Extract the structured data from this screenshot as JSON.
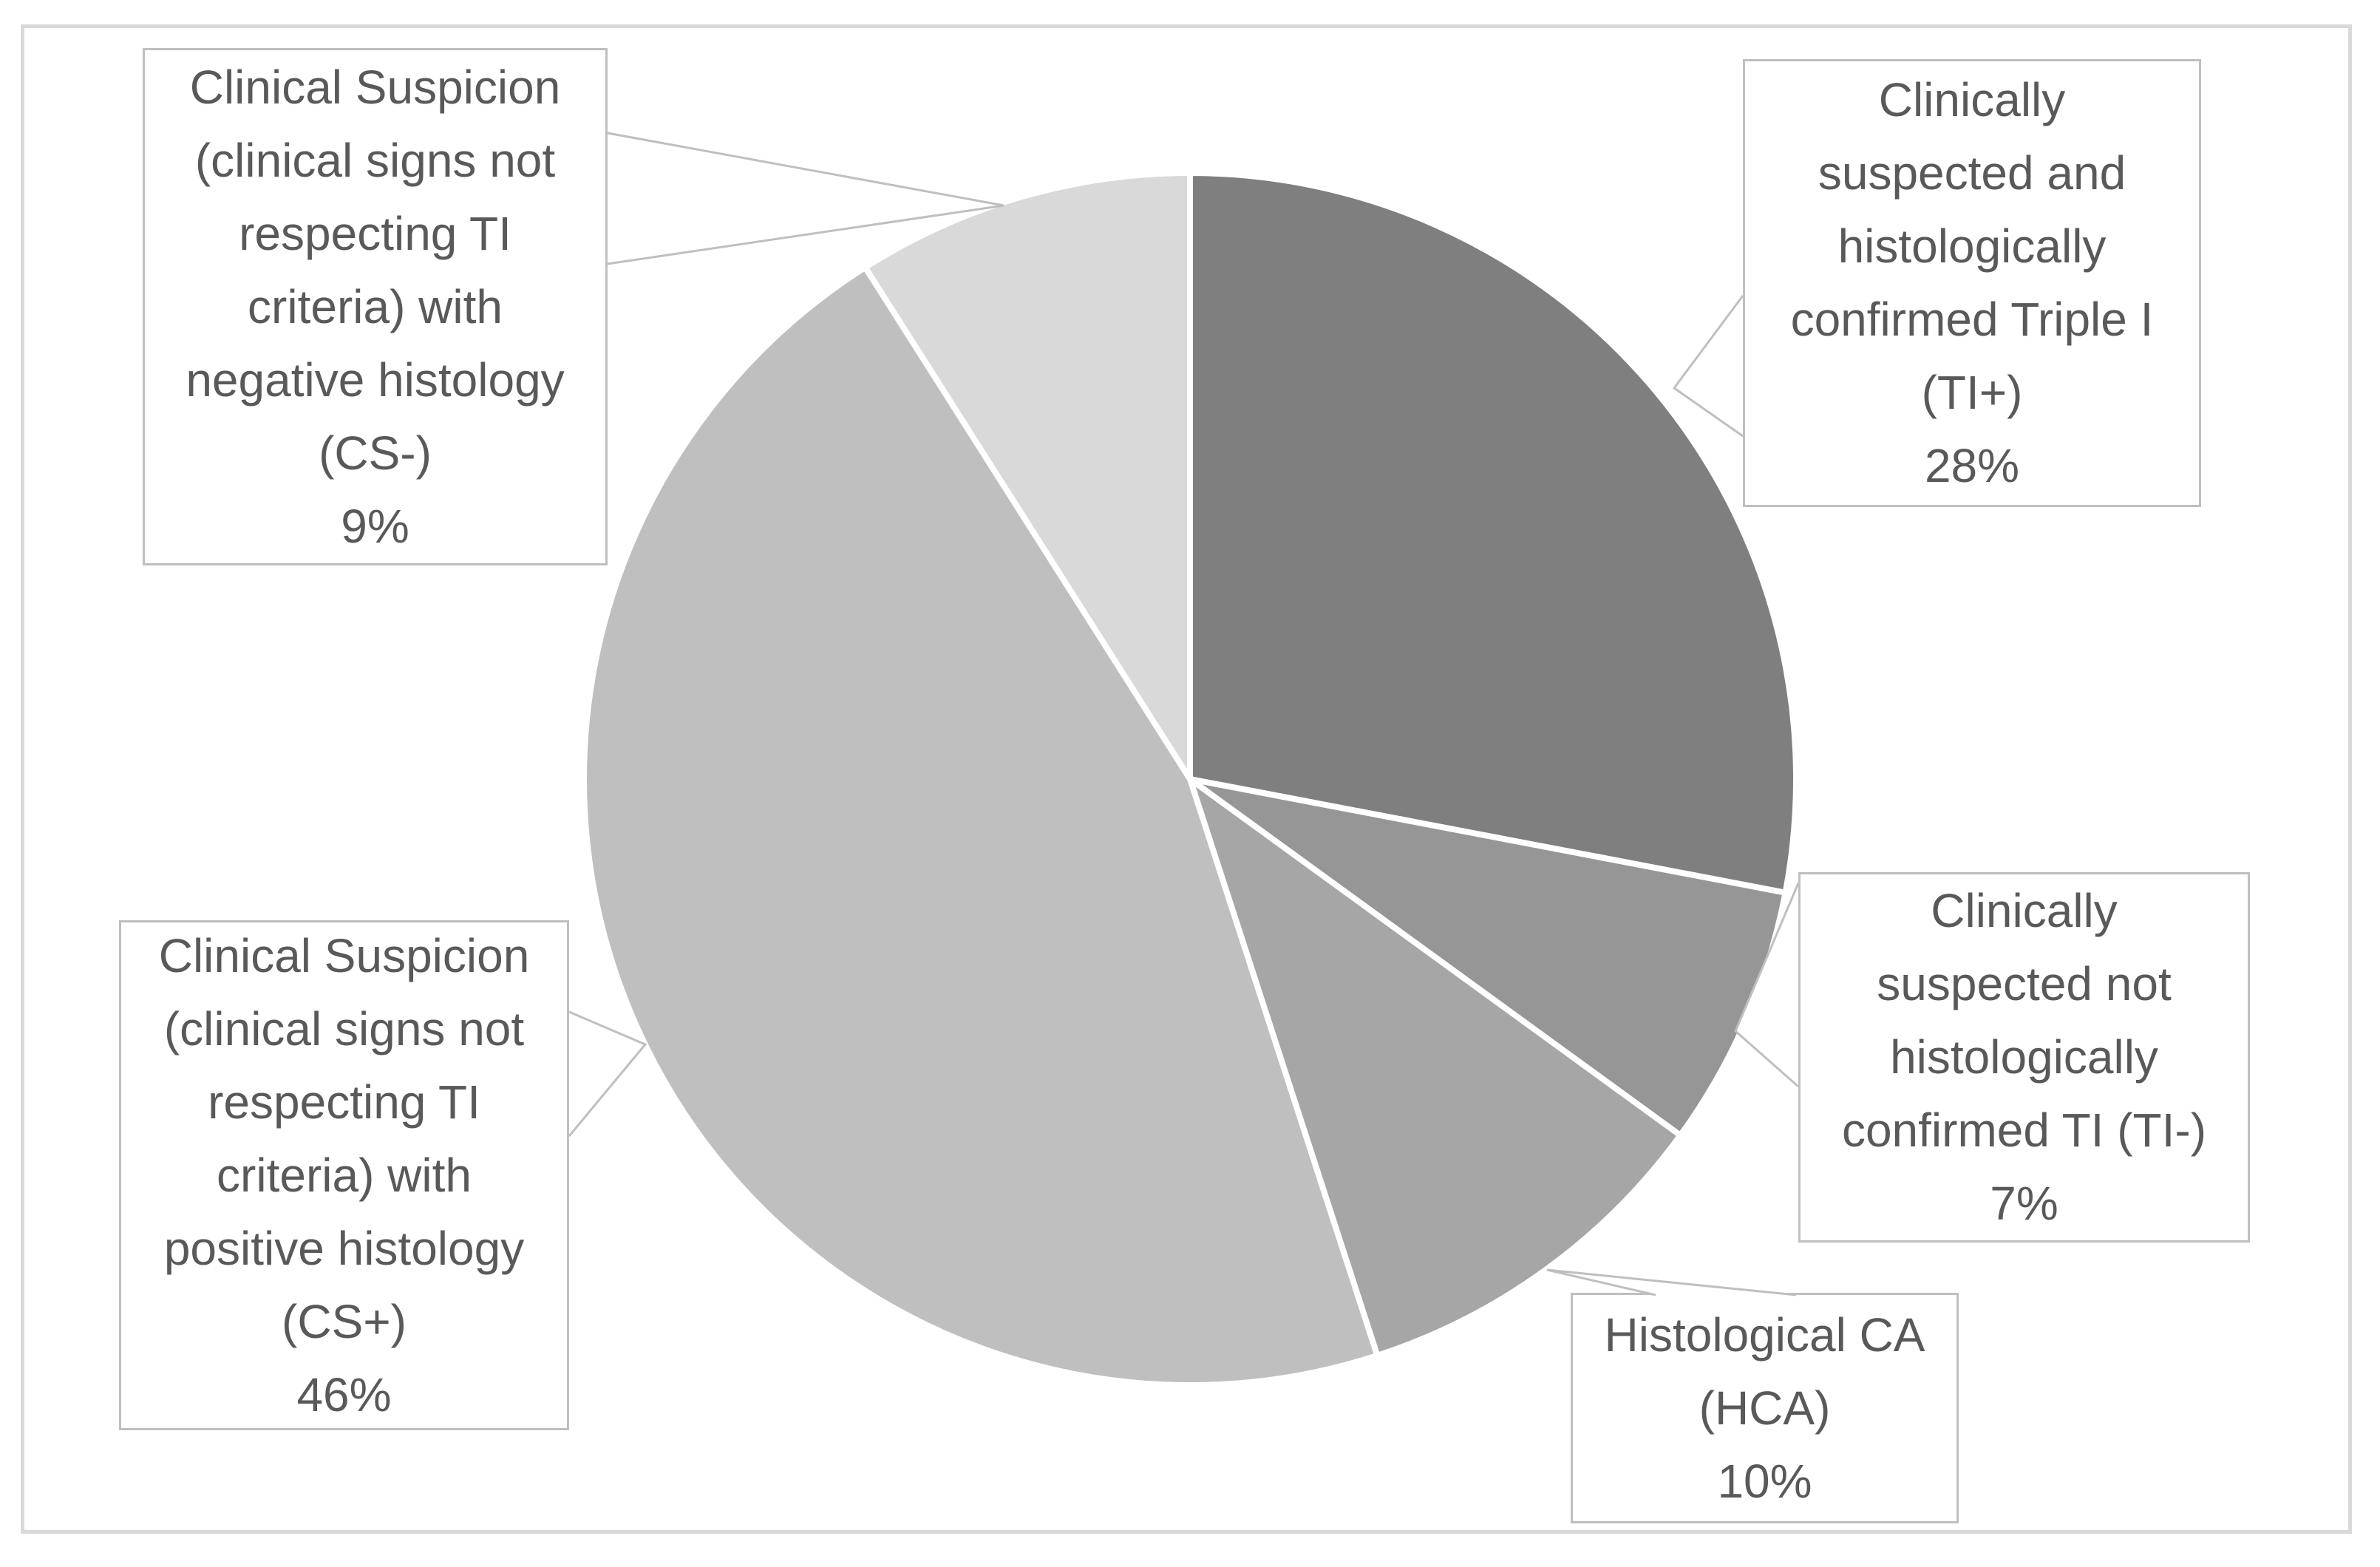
{
  "figure": {
    "kind": "pie-chart-figure",
    "background_color": "#ffffff",
    "frame_border_color": "#d9d9d9",
    "callout_border_color": "#bfbfbf",
    "text_color": "#595959",
    "slice_divider_color": "#ffffff"
  },
  "chart_data": {
    "type": "pie",
    "title": "",
    "legend": "none",
    "start_angle_deg": 0,
    "direction": "clockwise",
    "labels_style": "callout-boxes",
    "slices": [
      {
        "id": "ti_plus",
        "label": "Clinically suspected and histologically confirmed Triple I (TI+)",
        "name_lines": [
          "Clinically",
          "suspected and",
          "histologically",
          "confirmed Triple I",
          "(TI+)"
        ],
        "percent_label": "28%",
        "value": 28,
        "color": "#7f7f7f"
      },
      {
        "id": "ti_minus",
        "label": "Clinically suspected not histologically confirmed TI (TI-)",
        "name_lines": [
          "Clinically",
          "suspected not",
          "histologically",
          "confirmed TI (TI-)"
        ],
        "percent_label": "7%",
        "value": 7,
        "color": "#969696"
      },
      {
        "id": "hca",
        "label": "Histological CA (HCA)",
        "name_lines": [
          "Histological CA",
          "(HCA)"
        ],
        "percent_label": "10%",
        "value": 10,
        "color": "#a6a6a6"
      },
      {
        "id": "cs_plus",
        "label": "Clinical Suspicion (clinical signs not respecting TI criteria) with positive histology (CS+)",
        "name_lines": [
          "Clinical Suspicion",
          "(clinical signs not",
          "respecting TI",
          "criteria) with",
          "positive histology",
          "(CS+)"
        ],
        "percent_label": "46%",
        "value": 46,
        "color": "#bfbfbf"
      },
      {
        "id": "cs_minus",
        "label": "Clinical Suspicion (clinical signs not respecting TI criteria) with negative histology (CS-)",
        "name_lines": [
          "Clinical Suspicion",
          "(clinical signs not",
          "respecting TI",
          "criteria) with",
          "negative histology",
          "(CS-)"
        ],
        "percent_label": "9%",
        "value": 9,
        "color": "#d9d9d9"
      }
    ]
  }
}
